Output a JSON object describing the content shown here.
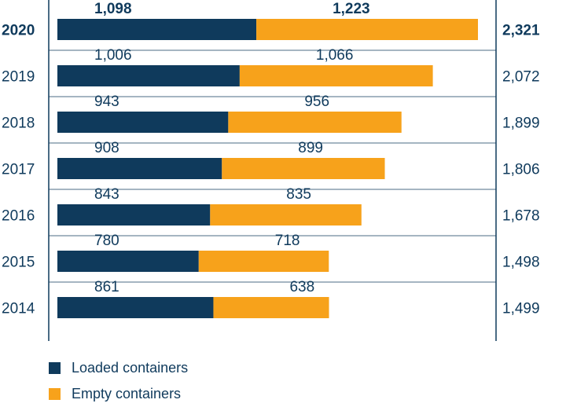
{
  "chart_data": {
    "type": "bar",
    "orientation": "horizontal",
    "stacked": true,
    "categories": [
      "2020",
      "2019",
      "2018",
      "2017",
      "2016",
      "2015",
      "2014"
    ],
    "series": [
      {
        "name": "Loaded containers",
        "values": [
          1098,
          1006,
          943,
          908,
          843,
          780,
          861
        ],
        "color": "#0f3a5c"
      },
      {
        "name": "Empty containers",
        "values": [
          1223,
          1066,
          956,
          899,
          835,
          718,
          638
        ],
        "color": "#f7a21b"
      }
    ],
    "totals": [
      2321,
      2072,
      1899,
      1806,
      1678,
      1498,
      1499
    ],
    "value_labels_loaded": [
      "1,098",
      "1,006",
      "943",
      "908",
      "843",
      "780",
      "861"
    ],
    "value_labels_empty": [
      "1,223",
      "1,066",
      "956",
      "899",
      "835",
      "718",
      "638"
    ],
    "total_labels": [
      "2,321",
      "2,072",
      "1,899",
      "1,806",
      "1,678",
      "1,498",
      "1,499"
    ],
    "highlight_category": "2020",
    "title": "",
    "xlabel": "",
    "ylabel": "",
    "xlim": [
      0,
      2321
    ],
    "grid": false,
    "legend_position": "bottom-left"
  },
  "legend": {
    "items": [
      {
        "label": "Loaded containers",
        "color": "#0f3a5c"
      },
      {
        "label": "Empty containers",
        "color": "#f7a21b"
      }
    ]
  }
}
